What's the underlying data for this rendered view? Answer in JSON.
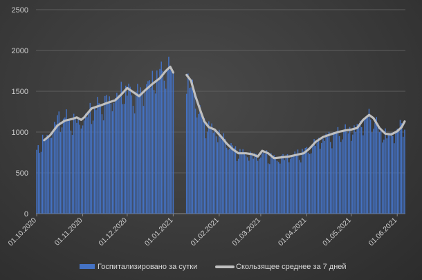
{
  "chart_data": {
    "type": "bar",
    "title": "",
    "xlabel": "",
    "ylabel": "",
    "ylim": [
      0,
      2500
    ],
    "y_ticks": [
      0,
      500,
      1000,
      1500,
      2000,
      2500
    ],
    "grid": "horizontal",
    "legend_position": "bottom",
    "x_range": [
      "01.10.2020",
      "06.06.2021"
    ],
    "x_ticks": [
      "01.10.2020",
      "01.11.2020",
      "01.12.2020",
      "01.01.2021",
      "01.02.2021",
      "01.03.2021",
      "01.04.2021",
      "01.05.2021",
      "01.06.2021"
    ],
    "gap": [
      "01.01.2021",
      "10.01.2021"
    ],
    "series": [
      {
        "name": "Госпитализировано за сутки",
        "type": "bar",
        "color": "#4472C4",
        "anchors": [
          [
            "01.10.2020",
            820
          ],
          [
            "05.10.2020",
            900
          ],
          [
            "10.10.2020",
            1000
          ],
          [
            "15.10.2020",
            1180
          ],
          [
            "20.10.2020",
            1200
          ],
          [
            "25.10.2020",
            1150
          ],
          [
            "31.10.2020",
            1150
          ],
          [
            "05.11.2020",
            1250
          ],
          [
            "10.11.2020",
            1330
          ],
          [
            "15.11.2020",
            1380
          ],
          [
            "20.11.2020",
            1420
          ],
          [
            "25.11.2020",
            1480
          ],
          [
            "30.11.2020",
            1560
          ],
          [
            "05.12.2020",
            1470
          ],
          [
            "10.12.2020",
            1520
          ],
          [
            "15.12.2020",
            1620
          ],
          [
            "20.12.2020",
            1700
          ],
          [
            "25.12.2020",
            1790
          ],
          [
            "28.12.2020",
            1830
          ],
          [
            "01.01.2021",
            1740
          ],
          [
            "10.01.2021",
            1700
          ],
          [
            "14.01.2021",
            1550
          ],
          [
            "18.01.2021",
            1300
          ],
          [
            "22.01.2021",
            1150
          ],
          [
            "26.01.2021",
            1080
          ],
          [
            "31.01.2021",
            1010
          ],
          [
            "05.02.2021",
            920
          ],
          [
            "10.02.2021",
            820
          ],
          [
            "15.02.2021",
            760
          ],
          [
            "20.02.2021",
            750
          ],
          [
            "25.02.2021",
            720
          ],
          [
            "01.03.2021",
            740
          ],
          [
            "05.03.2021",
            740
          ],
          [
            "10.03.2021",
            690
          ],
          [
            "15.03.2021",
            700
          ],
          [
            "20.03.2021",
            720
          ],
          [
            "25.03.2021",
            740
          ],
          [
            "01.04.2021",
            790
          ],
          [
            "05.04.2021",
            850
          ],
          [
            "10.04.2021",
            920
          ],
          [
            "15.04.2021",
            960
          ],
          [
            "20.04.2021",
            990
          ],
          [
            "25.04.2021",
            1020
          ],
          [
            "01.05.2021",
            1040
          ],
          [
            "05.05.2021",
            1080
          ],
          [
            "10.05.2021",
            1180
          ],
          [
            "13.05.2021",
            1200
          ],
          [
            "17.05.2021",
            1150
          ],
          [
            "21.05.2021",
            1030
          ],
          [
            "25.05.2021",
            980
          ],
          [
            "01.06.2021",
            1030
          ],
          [
            "06.06.2021",
            1150
          ]
        ]
      },
      {
        "name": "Скользящее среднее за 7 дней",
        "type": "line",
        "color": "#BFBFBF",
        "segments": [
          [
            [
              "06.10.2020",
              900
            ],
            [
              "10.10.2020",
              960
            ],
            [
              "15.10.2020",
              1080
            ],
            [
              "20.10.2020",
              1140
            ],
            [
              "25.10.2020",
              1160
            ],
            [
              "28.10.2020",
              1180
            ],
            [
              "31.10.2020",
              1150
            ],
            [
              "02.11.2020",
              1180
            ],
            [
              "07.11.2020",
              1290
            ],
            [
              "12.11.2020",
              1320
            ],
            [
              "18.11.2020",
              1360
            ],
            [
              "23.11.2020",
              1390
            ],
            [
              "27.11.2020",
              1460
            ],
            [
              "01.12.2020",
              1540
            ],
            [
              "05.12.2020",
              1490
            ],
            [
              "09.12.2020",
              1440
            ],
            [
              "13.12.2020",
              1510
            ],
            [
              "18.12.2020",
              1590
            ],
            [
              "23.12.2020",
              1660
            ],
            [
              "27.12.2020",
              1750
            ],
            [
              "30.12.2020",
              1800
            ],
            [
              "01.01.2021",
              1730
            ]
          ],
          [
            [
              "10.01.2021",
              1700
            ],
            [
              "13.01.2021",
              1630
            ],
            [
              "16.01.2021",
              1440
            ],
            [
              "19.01.2021",
              1280
            ],
            [
              "22.01.2021",
              1130
            ],
            [
              "25.01.2021",
              1060
            ],
            [
              "29.01.2021",
              1030
            ],
            [
              "02.02.2021",
              950
            ],
            [
              "06.02.2021",
              860
            ],
            [
              "10.02.2021",
              790
            ],
            [
              "14.02.2021",
              740
            ],
            [
              "19.02.2021",
              740
            ],
            [
              "23.02.2021",
              730
            ],
            [
              "27.02.2021",
              700
            ],
            [
              "02.03.2021",
              770
            ],
            [
              "06.03.2021",
              740
            ],
            [
              "10.03.2021",
              680
            ],
            [
              "15.03.2021",
              690
            ],
            [
              "20.03.2021",
              700
            ],
            [
              "25.03.2021",
              720
            ],
            [
              "30.03.2021",
              740
            ],
            [
              "03.04.2021",
              800
            ],
            [
              "07.04.2021",
              880
            ],
            [
              "12.04.2021",
              940
            ],
            [
              "17.04.2021",
              970
            ],
            [
              "22.04.2021",
              1000
            ],
            [
              "27.04.2021",
              1020
            ],
            [
              "01.05.2021",
              1030
            ],
            [
              "05.05.2021",
              1050
            ],
            [
              "09.05.2021",
              1150
            ],
            [
              "13.05.2021",
              1210
            ],
            [
              "16.05.2021",
              1170
            ],
            [
              "20.05.2021",
              1050
            ],
            [
              "24.05.2021",
              980
            ],
            [
              "28.05.2021",
              970
            ],
            [
              "01.06.2021",
              1010
            ],
            [
              "04.06.2021",
              1060
            ],
            [
              "06.06.2021",
              1130
            ]
          ]
        ]
      }
    ]
  }
}
